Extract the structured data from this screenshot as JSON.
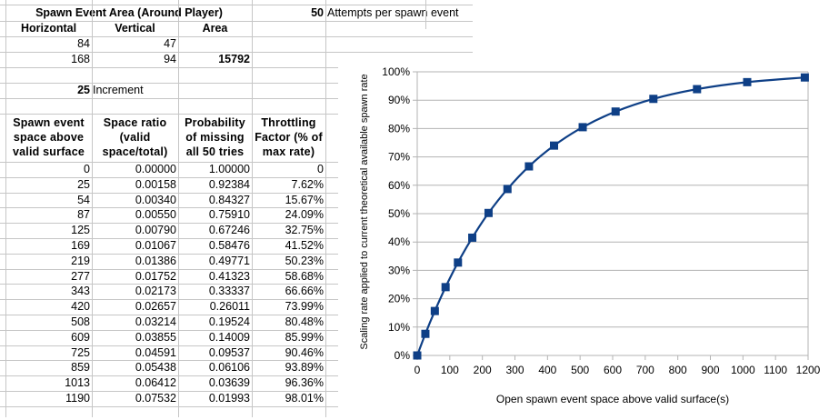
{
  "spawn_area": {
    "title": "Spawn Event Area (Around Player)",
    "headers": [
      "Horizontal",
      "Vertical",
      "Area"
    ],
    "row1": [
      "84",
      "47"
    ],
    "row2": [
      "168",
      "94",
      "15792"
    ]
  },
  "attempts": {
    "value": "50",
    "label": "Attempts per spawn event"
  },
  "increment": {
    "value": "25",
    "label": "Increment"
  },
  "table": {
    "headers": [
      [
        "Spawn event",
        "space above",
        "valid surface"
      ],
      [
        "Space ratio",
        "(valid",
        "space/total)"
      ],
      [
        "Probability",
        "of missing",
        "all 50 tries"
      ],
      [
        "Throttling",
        "Factor (% of",
        "max rate)"
      ]
    ],
    "rows": [
      [
        "0",
        "0.00000",
        "1.00000",
        "0"
      ],
      [
        "25",
        "0.00158",
        "0.92384",
        "7.62%"
      ],
      [
        "54",
        "0.00340",
        "0.84327",
        "15.67%"
      ],
      [
        "87",
        "0.00550",
        "0.75910",
        "24.09%"
      ],
      [
        "125",
        "0.00790",
        "0.67246",
        "32.75%"
      ],
      [
        "169",
        "0.01067",
        "0.58476",
        "41.52%"
      ],
      [
        "219",
        "0.01386",
        "0.49771",
        "50.23%"
      ],
      [
        "277",
        "0.01752",
        "0.41323",
        "58.68%"
      ],
      [
        "343",
        "0.02173",
        "0.33337",
        "66.66%"
      ],
      [
        "420",
        "0.02657",
        "0.26011",
        "73.99%"
      ],
      [
        "508",
        "0.03214",
        "0.19524",
        "80.48%"
      ],
      [
        "609",
        "0.03855",
        "0.14009",
        "85.99%"
      ],
      [
        "725",
        "0.04591",
        "0.09537",
        "90.46%"
      ],
      [
        "859",
        "0.05438",
        "0.06106",
        "93.89%"
      ],
      [
        "1013",
        "0.06412",
        "0.03639",
        "96.36%"
      ],
      [
        "1190",
        "0.07532",
        "0.01993",
        "98.01%"
      ]
    ]
  },
  "chart_data": {
    "type": "line",
    "title": "",
    "xlabel": "Open spawn event space above valid surface(s)",
    "ylabel": "Scaling rate applied to current theoretical available spawn rate",
    "xlim": [
      0,
      1200
    ],
    "ylim": [
      0,
      100
    ],
    "xticks": [
      "0",
      "100",
      "200",
      "300",
      "400",
      "500",
      "600",
      "700",
      "800",
      "900",
      "1000",
      "1100",
      "1200"
    ],
    "yticks": [
      "0%",
      "10%",
      "20%",
      "30%",
      "40%",
      "50%",
      "60%",
      "70%",
      "80%",
      "90%",
      "100%"
    ],
    "grid": "horizontal",
    "series": [
      {
        "name": "Throttling Factor",
        "color": "#0e3f86",
        "x": [
          0,
          25,
          54,
          87,
          125,
          169,
          219,
          277,
          343,
          420,
          508,
          609,
          725,
          859,
          1013,
          1190
        ],
        "y": [
          0,
          7.62,
          15.67,
          24.09,
          32.75,
          41.52,
          50.23,
          58.68,
          66.66,
          73.99,
          80.48,
          85.99,
          90.46,
          93.89,
          96.36,
          98.01
        ]
      }
    ]
  }
}
